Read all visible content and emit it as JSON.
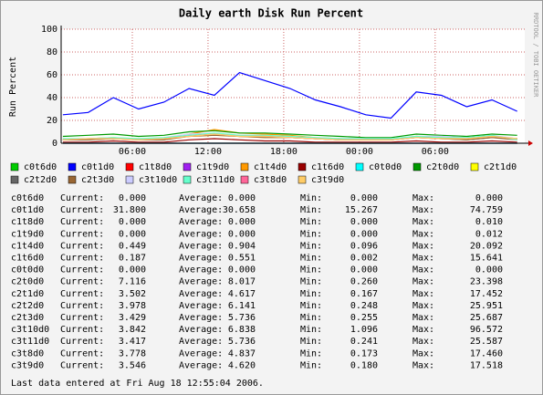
{
  "chart_data": {
    "type": "line",
    "title": "Daily earth Disk Run Percent",
    "y_label": "Run Percent",
    "x": [
      0.5,
      2.5,
      4.5,
      6.5,
      8.5,
      10.5,
      12.5,
      14.5,
      16.5,
      18.5,
      20.5,
      22.5,
      24.5,
      26.5,
      28.5,
      30.5,
      32.5,
      34.5,
      36.5
    ],
    "xlim": [
      0.36,
      37.1
    ],
    "xticks": [
      {
        "value": 6,
        "label": "06:00"
      },
      {
        "value": 12,
        "label": "12:00"
      },
      {
        "value": 18,
        "label": "18:00"
      },
      {
        "value": 24,
        "label": "00:00"
      },
      {
        "value": 30,
        "label": "06:00"
      }
    ],
    "ylim": [
      0,
      100
    ],
    "yticks": [
      0,
      20,
      40,
      60,
      80,
      100
    ],
    "grid": true,
    "series": [
      {
        "name": "c0t6d0",
        "color": "#00cc00",
        "values": [
          0,
          0,
          0,
          0,
          0,
          0,
          0,
          0,
          0,
          0,
          0,
          0,
          0,
          0,
          0,
          0,
          0,
          0,
          0
        ]
      },
      {
        "name": "c0t1d0",
        "color": "#0000ff",
        "values": [
          25,
          27,
          40,
          30,
          36,
          48,
          42,
          62,
          55,
          48,
          38,
          32,
          25,
          22,
          45,
          42,
          32,
          38,
          28
        ]
      },
      {
        "name": "c1t8d0",
        "color": "#ff0000",
        "values": [
          0,
          0,
          0,
          0,
          0,
          0,
          0,
          0,
          0,
          0,
          0,
          0,
          0,
          0,
          0,
          0,
          0,
          0,
          0
        ]
      },
      {
        "name": "c1t9d0",
        "color": "#a020f0",
        "values": [
          0,
          0,
          0,
          0,
          0,
          0,
          0,
          0,
          0,
          0,
          0,
          0,
          0,
          0,
          0,
          0,
          0,
          0,
          0
        ]
      },
      {
        "name": "c1t4d0",
        "color": "#ff9900",
        "values": [
          3,
          4,
          5,
          3,
          4,
          8,
          12,
          9,
          8,
          7,
          5,
          4,
          3,
          3,
          6,
          5,
          4,
          6,
          4
        ]
      },
      {
        "name": "c1t6d0",
        "color": "#990000",
        "values": [
          1,
          1,
          2,
          1,
          1,
          3,
          4,
          3,
          2,
          2,
          1,
          1,
          1,
          1,
          2,
          1,
          1,
          2,
          1
        ]
      },
      {
        "name": "c0t0d0",
        "color": "#00ffff",
        "values": [
          0,
          0,
          0,
          0,
          0,
          0,
          0,
          0,
          0,
          0,
          0,
          0,
          0,
          0,
          0,
          0,
          0,
          0,
          0
        ]
      },
      {
        "name": "c2t0d0",
        "color": "#009900",
        "values": [
          6,
          7,
          8,
          6,
          7,
          10,
          11,
          9,
          9,
          8,
          7,
          6,
          5,
          5,
          8,
          7,
          6,
          8,
          7
        ]
      },
      {
        "name": "c2t1d0",
        "color": "#ffff00",
        "values": [
          3,
          4,
          5,
          4,
          4,
          6,
          7,
          6,
          5,
          5,
          4,
          3,
          3,
          3,
          6,
          5,
          4,
          6,
          4
        ]
      },
      {
        "name": "c2t2d0",
        "color": "#666666",
        "values": [
          3,
          3,
          4,
          3,
          3,
          7,
          8,
          6,
          6,
          5,
          4,
          3,
          3,
          3,
          5,
          4,
          3,
          5,
          4
        ]
      },
      {
        "name": "c2t3d0",
        "color": "#996633",
        "values": [
          3,
          3,
          4,
          3,
          3,
          6,
          7,
          6,
          5,
          5,
          4,
          3,
          3,
          3,
          5,
          4,
          3,
          5,
          3
        ]
      },
      {
        "name": "c3t10d0",
        "color": "#ccccff",
        "values": [
          4,
          4,
          5,
          4,
          5,
          8,
          9,
          7,
          7,
          6,
          5,
          4,
          4,
          4,
          6,
          6,
          5,
          7,
          4
        ]
      },
      {
        "name": "c3t11d0",
        "color": "#66ffcc",
        "values": [
          4,
          4,
          5,
          4,
          5,
          7,
          9,
          7,
          7,
          6,
          5,
          4,
          4,
          4,
          6,
          5,
          5,
          7,
          3
        ]
      },
      {
        "name": "c3t8d0",
        "color": "#ff6699",
        "values": [
          3,
          4,
          4,
          3,
          4,
          6,
          8,
          6,
          6,
          5,
          4,
          3,
          3,
          3,
          5,
          4,
          4,
          6,
          4
        ]
      },
      {
        "name": "c3t9d0",
        "color": "#ffcc66",
        "values": [
          3,
          4,
          4,
          3,
          4,
          6,
          8,
          6,
          6,
          5,
          4,
          3,
          3,
          3,
          5,
          4,
          4,
          6,
          4
        ]
      }
    ]
  },
  "stats": {
    "labels": [
      "Current:",
      "Average:",
      "Min:",
      "Max:"
    ],
    "rows": [
      [
        "0.000",
        "0.000",
        "0.000",
        "0.000"
      ],
      [
        "31.800",
        "30.658",
        "15.267",
        "74.759"
      ],
      [
        "0.000",
        "0.000",
        "0.000",
        "0.010"
      ],
      [
        "0.000",
        "0.000",
        "0.000",
        "0.012"
      ],
      [
        "0.449",
        "0.904",
        "0.096",
        "20.092"
      ],
      [
        "0.187",
        "0.551",
        "0.002",
        "15.641"
      ],
      [
        "0.000",
        "0.000",
        "0.000",
        "0.000"
      ],
      [
        "7.116",
        "8.017",
        "0.260",
        "23.398"
      ],
      [
        "3.502",
        "4.617",
        "0.167",
        "17.452"
      ],
      [
        "3.978",
        "6.141",
        "0.248",
        "25.951"
      ],
      [
        "3.429",
        "5.736",
        "0.255",
        "25.687"
      ],
      [
        "3.842",
        "6.838",
        "1.096",
        "96.572"
      ],
      [
        "3.417",
        "5.736",
        "0.241",
        "25.587"
      ],
      [
        "3.778",
        "4.837",
        "0.173",
        "17.460"
      ],
      [
        "3.546",
        "4.620",
        "0.180",
        "17.518"
      ]
    ]
  },
  "footer": "Last data entered at Fri Aug 18 12:55:04 2006.",
  "watermark": "RRDTOOL / TOBI OETIKER"
}
